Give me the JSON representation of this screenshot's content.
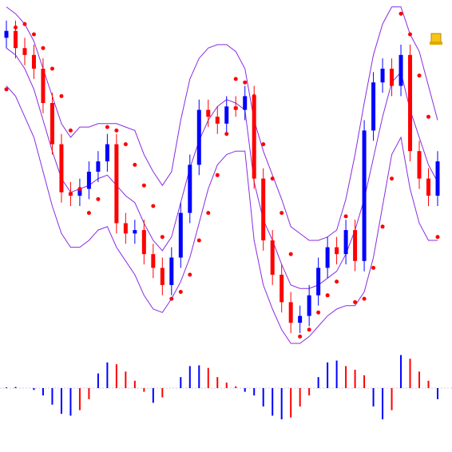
{
  "chart_data": [
    {
      "type": "candlestick",
      "ylim": [
        0,
        100
      ],
      "up_color": "#0000ff",
      "down_color": "#ff0000",
      "band_color": "#8a2be2",
      "sar_color": "#ff0000",
      "open": [
        89,
        91,
        86,
        84,
        80,
        70,
        58,
        44,
        43,
        45,
        50,
        53,
        58,
        35,
        32,
        33,
        26,
        22,
        17,
        25,
        38,
        52,
        68,
        66,
        64,
        69,
        68,
        72,
        48,
        30,
        20,
        12,
        6,
        8,
        14,
        22,
        28,
        26,
        33,
        24,
        62,
        76,
        80,
        75,
        84,
        56,
        48,
        43
      ],
      "close": [
        91,
        86,
        84,
        80,
        70,
        58,
        44,
        43,
        45,
        50,
        53,
        58,
        35,
        32,
        33,
        26,
        22,
        17,
        25,
        38,
        52,
        68,
        66,
        64,
        69,
        68,
        72,
        48,
        30,
        20,
        12,
        6,
        8,
        14,
        22,
        28,
        26,
        33,
        24,
        62,
        76,
        80,
        75,
        84,
        56,
        48,
        43,
        53
      ],
      "high": [
        94,
        94,
        89,
        87,
        83,
        73,
        61,
        47,
        48,
        53,
        56,
        61,
        61,
        38,
        36,
        36,
        29,
        25,
        28,
        41,
        55,
        71,
        71,
        69,
        72,
        72,
        75,
        75,
        51,
        33,
        23,
        15,
        11,
        17,
        25,
        31,
        31,
        36,
        36,
        65,
        79,
        83,
        83,
        87,
        87,
        59,
        51,
        56
      ],
      "low": [
        86,
        83,
        81,
        77,
        67,
        55,
        41,
        40,
        40,
        42,
        47,
        50,
        32,
        29,
        29,
        23,
        19,
        14,
        14,
        22,
        35,
        49,
        63,
        61,
        61,
        66,
        65,
        45,
        27,
        17,
        9,
        3,
        3,
        5,
        11,
        19,
        23,
        23,
        21,
        21,
        59,
        73,
        72,
        72,
        53,
        45,
        40,
        40
      ],
      "sar": [
        74,
        92,
        93,
        90,
        86,
        80,
        72,
        62,
        45,
        38,
        42,
        63,
        62,
        58,
        52,
        46,
        40,
        31,
        13,
        15,
        20,
        30,
        38,
        49,
        61,
        77,
        76,
        72,
        58,
        48,
        38,
        26,
        2,
        4,
        9,
        14,
        18,
        37,
        12,
        13,
        22,
        34,
        48,
        96,
        90,
        78,
        66,
        31
      ],
      "upper": [
        98,
        96,
        93,
        88,
        80,
        72,
        64,
        60,
        63,
        63,
        64,
        64,
        64,
        63,
        62,
        55,
        50,
        46,
        50,
        65,
        77,
        83,
        86,
        87,
        87,
        85,
        80,
        65,
        56,
        49,
        42,
        34,
        32,
        30,
        30,
        31,
        33,
        42,
        55,
        70,
        84,
        93,
        98,
        98,
        90,
        85,
        75,
        65
      ],
      "middle": [
        86,
        84,
        80,
        74,
        65,
        56,
        48,
        44,
        45,
        46,
        48,
        49,
        46,
        43,
        41,
        35,
        30,
        27,
        31,
        41,
        51,
        59,
        65,
        69,
        71,
        70,
        68,
        47,
        36,
        30,
        23,
        17,
        16,
        16,
        17,
        19,
        21,
        26,
        33,
        42,
        54,
        66,
        76,
        79,
        68,
        60,
        52,
        47
      ],
      "lower": [
        75,
        72,
        66,
        60,
        50,
        40,
        32,
        28,
        28,
        30,
        33,
        34,
        28,
        24,
        20,
        14,
        10,
        9,
        13,
        18,
        25,
        35,
        45,
        52,
        55,
        56,
        56,
        30,
        17,
        10,
        4,
        0,
        0,
        2,
        5,
        8,
        10,
        11,
        11,
        15,
        25,
        40,
        55,
        60,
        45,
        35,
        30,
        30
      ]
    },
    {
      "type": "histogram",
      "ylim": [
        -1,
        1
      ],
      "up_color": "#0000ff",
      "down_color": "#ff0000",
      "values": [
        0.02,
        0.03,
        0,
        -0.05,
        -0.2,
        -0.45,
        -0.7,
        -0.75,
        -0.6,
        -0.3,
        0.4,
        0.7,
        0.65,
        0.45,
        0.2,
        -0.1,
        -0.4,
        -0.25,
        0,
        0.3,
        0.6,
        0.62,
        0.55,
        0.3,
        0.15,
        0.05,
        -0.1,
        -0.2,
        -0.5,
        -0.75,
        -0.85,
        -0.8,
        -0.5,
        -0.2,
        0.3,
        0.7,
        0.75,
        0.6,
        0.5,
        0.35,
        -0.5,
        -0.85,
        -0.6,
        0.9,
        0.8,
        0.45,
        0.2,
        -0.3
      ]
    }
  ]
}
